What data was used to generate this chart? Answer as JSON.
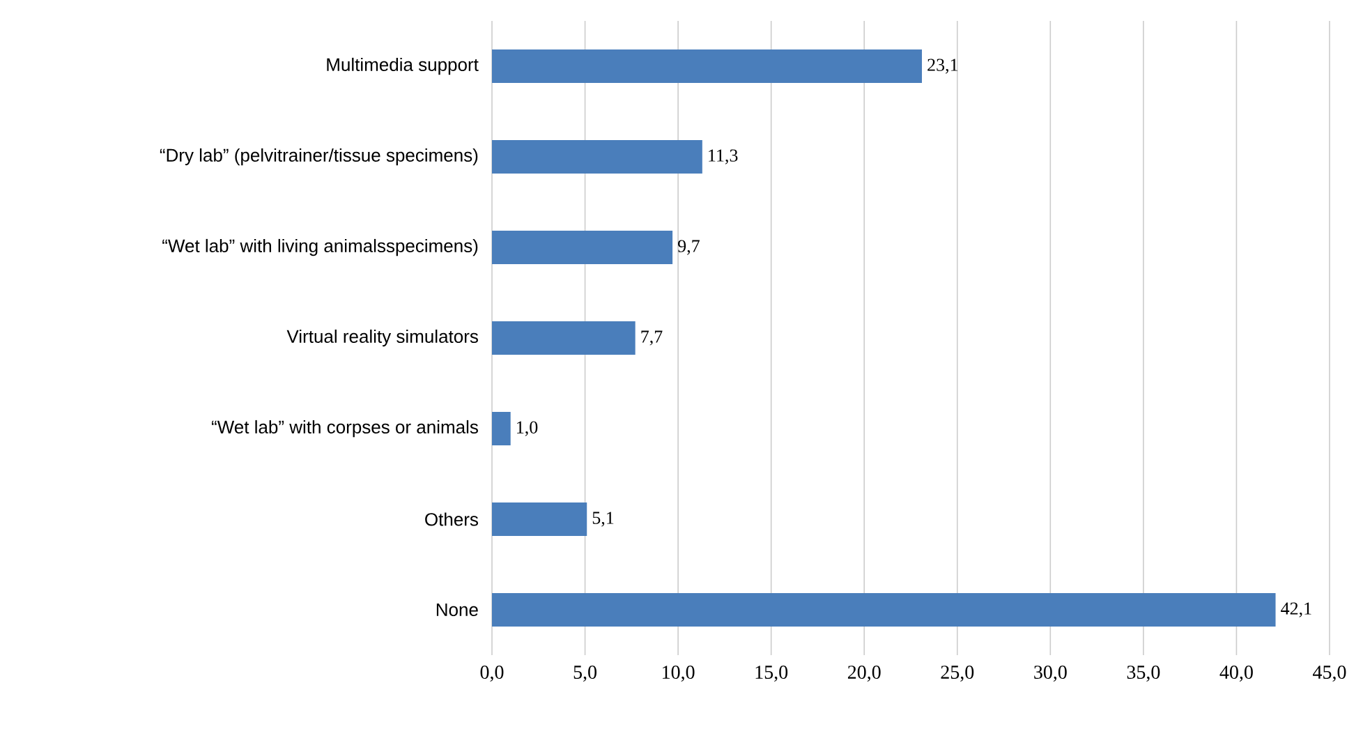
{
  "chart_data": {
    "type": "bar",
    "orientation": "horizontal",
    "categories": [
      "Multimedia support",
      "“Dry lab” (pelvitrainer/tissue specimens)",
      "“Wet lab” with living animalsspecimens)",
      "Virtual reality simulators",
      "“Wet lab” with corpses or animals",
      "Others",
      "None"
    ],
    "values": [
      23.1,
      11.3,
      9.7,
      7.7,
      1.0,
      5.1,
      42.1
    ],
    "value_labels": [
      "23,1",
      "11,3",
      "9,7",
      "7,7",
      "1,0",
      "5,1",
      "42,1"
    ],
    "color": "#4a7ebb",
    "xlim": [
      0,
      45
    ],
    "xticks": [
      {
        "value": 0,
        "label": "0,0"
      },
      {
        "value": 5,
        "label": "5,0"
      },
      {
        "value": 10,
        "label": "10,0"
      },
      {
        "value": 15,
        "label": "15,0"
      },
      {
        "value": 20,
        "label": "20,0"
      },
      {
        "value": 25,
        "label": "25,0"
      },
      {
        "value": 30,
        "label": "30,0"
      },
      {
        "value": 35,
        "label": "35,0"
      },
      {
        "value": 40,
        "label": "40,0"
      },
      {
        "value": 45,
        "label": "45,0"
      }
    ],
    "grid": "x"
  }
}
